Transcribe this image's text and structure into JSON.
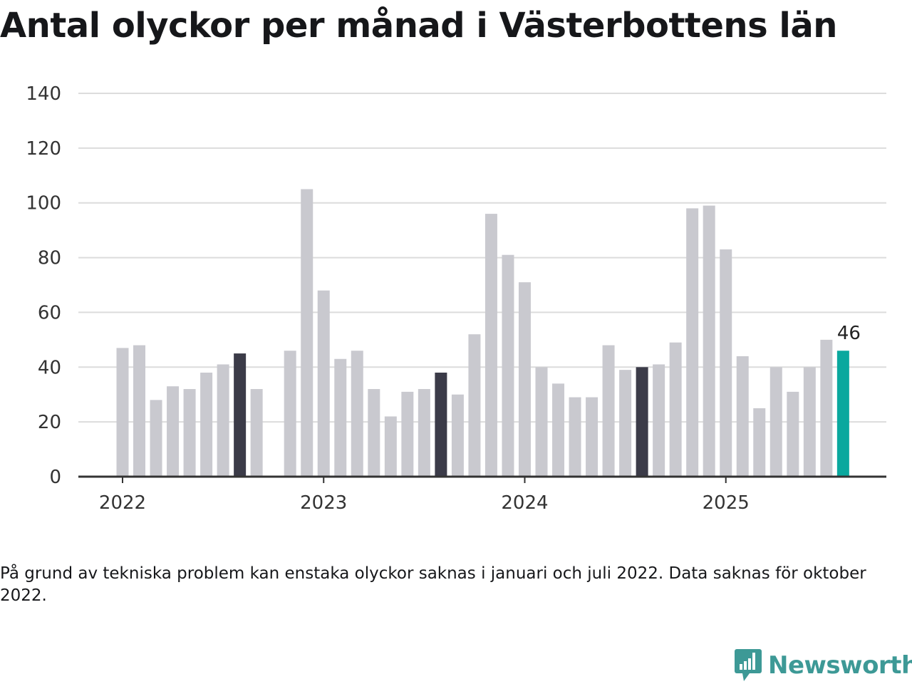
{
  "title": "Antal olyckor per månad i Västerbottens län",
  "footnote": "På grund av tekniska problem kan enstaka olyckor saknas i januari och juli 2022. Data saknas för oktober 2022.",
  "logo": {
    "text": "Newsworthy",
    "icon": "newsworthy-chart-bubble-icon"
  },
  "colors": {
    "normal": "#c9c9cf",
    "highlight": "#3b3b48",
    "latest": "#0aa89e",
    "grid": "#dcdcdc",
    "axis": "#333333",
    "logo": "#3d9996"
  },
  "chart_data": {
    "type": "bar",
    "title": "Antal olyckor per månad i Västerbottens län",
    "xlabel": "",
    "ylabel": "",
    "ylim": [
      0,
      140
    ],
    "yticks": [
      0,
      20,
      40,
      60,
      80,
      100,
      120,
      140
    ],
    "xtick_labels": [
      "2022",
      "2023",
      "2024",
      "2025"
    ],
    "grid": true,
    "bars": [
      {
        "month": "2022-01",
        "value": 47
      },
      {
        "month": "2022-02",
        "value": 48
      },
      {
        "month": "2022-03",
        "value": 28
      },
      {
        "month": "2022-04",
        "value": 33
      },
      {
        "month": "2022-05",
        "value": 32
      },
      {
        "month": "2022-06",
        "value": 38
      },
      {
        "month": "2022-07",
        "value": 41
      },
      {
        "month": "2022-08",
        "value": 45,
        "highlight": true
      },
      {
        "month": "2022-09",
        "value": 32
      },
      {
        "month": "2022-10",
        "value": null
      },
      {
        "month": "2022-11",
        "value": 46
      },
      {
        "month": "2022-12",
        "value": 105
      },
      {
        "month": "2023-01",
        "value": 68
      },
      {
        "month": "2023-02",
        "value": 43
      },
      {
        "month": "2023-03",
        "value": 46
      },
      {
        "month": "2023-04",
        "value": 32
      },
      {
        "month": "2023-05",
        "value": 22
      },
      {
        "month": "2023-06",
        "value": 31
      },
      {
        "month": "2023-07",
        "value": 32
      },
      {
        "month": "2023-08",
        "value": 38,
        "highlight": true
      },
      {
        "month": "2023-09",
        "value": 30
      },
      {
        "month": "2023-10",
        "value": 52
      },
      {
        "month": "2023-11",
        "value": 96
      },
      {
        "month": "2023-12",
        "value": 81
      },
      {
        "month": "2024-01",
        "value": 71
      },
      {
        "month": "2024-02",
        "value": 40
      },
      {
        "month": "2024-03",
        "value": 34
      },
      {
        "month": "2024-04",
        "value": 29
      },
      {
        "month": "2024-05",
        "value": 29
      },
      {
        "month": "2024-06",
        "value": 48
      },
      {
        "month": "2024-07",
        "value": 39
      },
      {
        "month": "2024-08",
        "value": 40,
        "highlight": true
      },
      {
        "month": "2024-09",
        "value": 41
      },
      {
        "month": "2024-10",
        "value": 49
      },
      {
        "month": "2024-11",
        "value": 98
      },
      {
        "month": "2024-12",
        "value": 99
      },
      {
        "month": "2025-01",
        "value": 83
      },
      {
        "month": "2025-02",
        "value": 44
      },
      {
        "month": "2025-03",
        "value": 25
      },
      {
        "month": "2025-04",
        "value": 40
      },
      {
        "month": "2025-05",
        "value": 31
      },
      {
        "month": "2025-06",
        "value": 40
      },
      {
        "month": "2025-07",
        "value": 50
      },
      {
        "month": "2025-08",
        "value": 46,
        "latest": true,
        "label": "46"
      }
    ]
  }
}
